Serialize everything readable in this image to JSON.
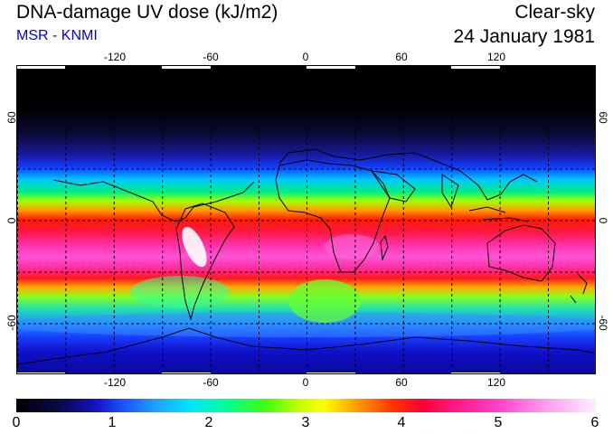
{
  "header": {
    "title": "DNA-damage UV dose (kJ/m2)",
    "subtitle": "MSR - KNMI",
    "mode": "Clear-sky",
    "date": "24 January 1981"
  },
  "map": {
    "lon_labels_top": [
      "-120",
      "-60",
      "0",
      "60",
      "120"
    ],
    "lon_labels_bottom": [
      "-120",
      "-60",
      "0",
      "60",
      "120"
    ],
    "lat_labels_left": [
      "60",
      "0",
      "-60"
    ],
    "lat_labels_right": [
      "60",
      "0",
      "-60"
    ]
  },
  "colorbar": {
    "tick_labels": [
      "0",
      "1",
      "2",
      "3",
      "4",
      "5",
      "6"
    ]
  }
}
